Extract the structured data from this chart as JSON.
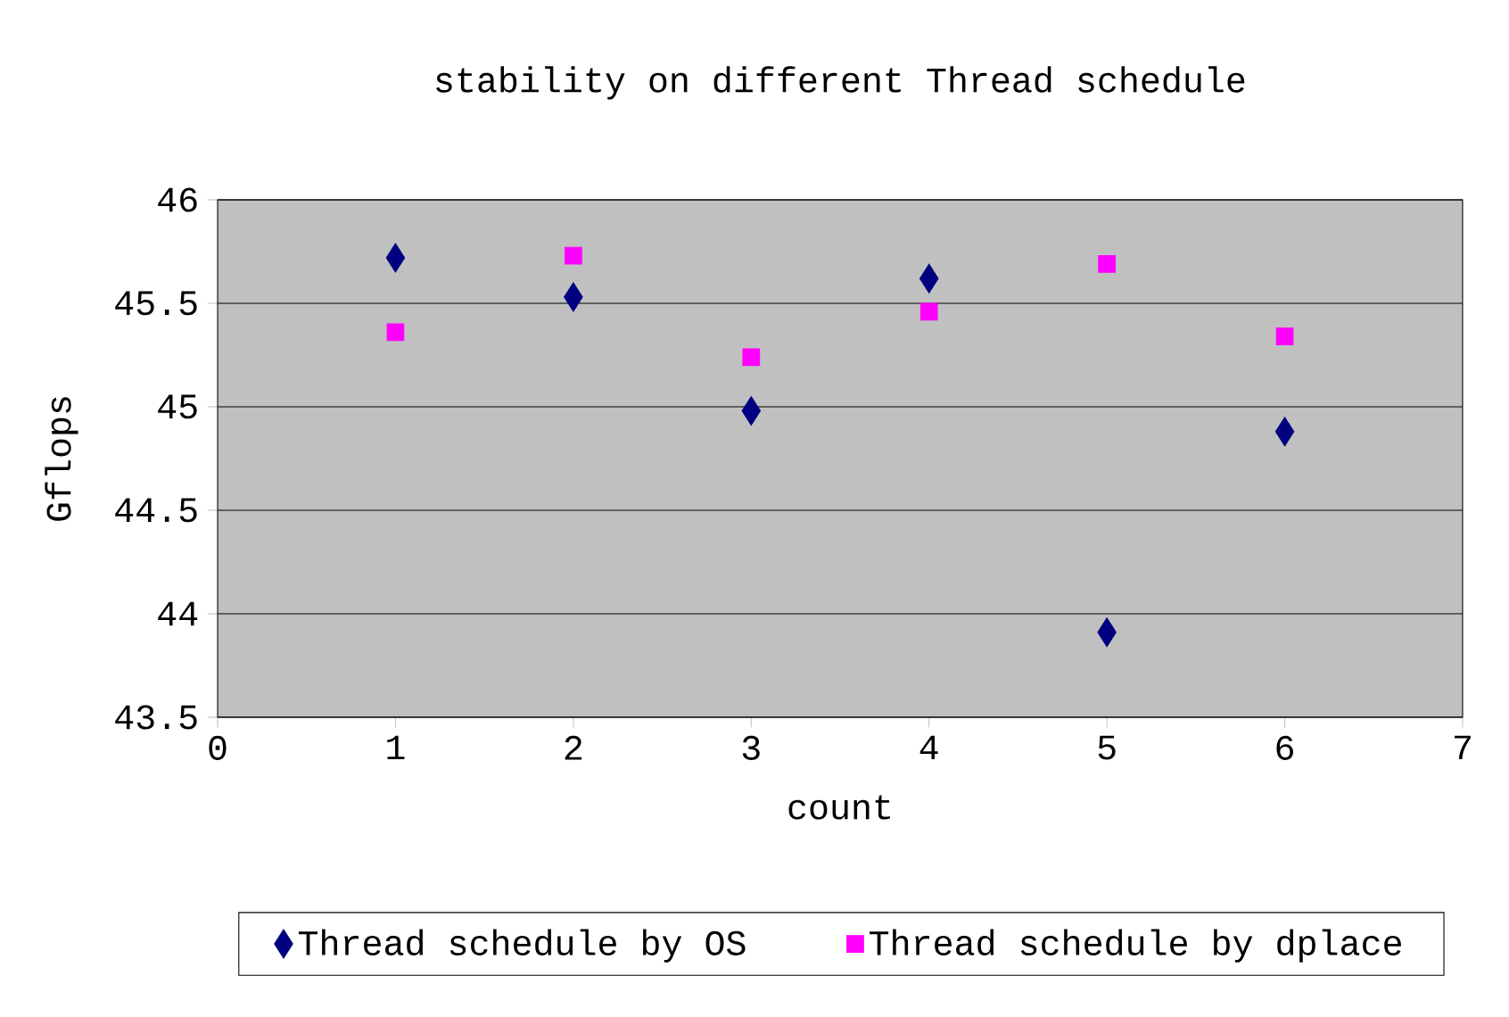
{
  "chart_data": {
    "type": "scatter",
    "title": "stability  on different Thread schedule",
    "xlabel": "count",
    "ylabel": "Gflops",
    "x": [
      1,
      2,
      3,
      4,
      5,
      6
    ],
    "series": [
      {
        "name": "Thread schedule by OS",
        "color": "#000080",
        "marker": "diamond",
        "values": [
          45.72,
          45.53,
          44.98,
          45.62,
          43.91,
          44.88
        ]
      },
      {
        "name": "Thread schedule by dplace",
        "color": "#ff00ff",
        "marker": "square",
        "values": [
          45.36,
          45.73,
          45.24,
          45.46,
          45.69,
          45.34
        ]
      }
    ],
    "xlim": [
      0,
      7
    ],
    "xticks": [
      0,
      1,
      2,
      3,
      4,
      5,
      6,
      7
    ],
    "ylim": [
      43.5,
      46
    ],
    "yticks": [
      43.5,
      44,
      44.5,
      45,
      45.5,
      46
    ],
    "grid": "y",
    "legend": "bottom"
  }
}
